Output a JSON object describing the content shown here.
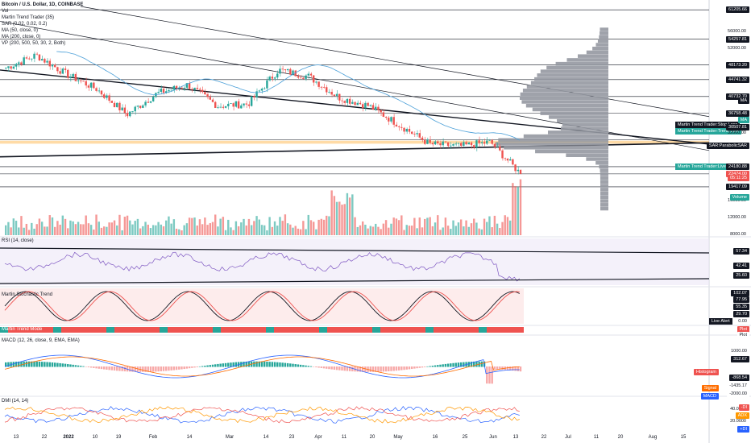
{
  "legend": {
    "title": "Bitcoin / U.S. Dollar, 1D, COINBASE",
    "lines": [
      "Vol",
      "Martin Trend Trader (35)",
      "SAR (0.02, 0.02, 0.2)",
      "MA (50, close, 0)",
      "MA (200, close, 0)",
      "VP (200, 500, 50, 30, 2, Both)"
    ]
  },
  "pane_titles": {
    "rsi": "RSI (14, close)",
    "stoch": "Martin Stochastic Trend",
    "mode": "Martin Trend Mode",
    "macd": "MACD (12, 26, close, 9, EMA, EMA)",
    "dmi": "DMI (14, 14)"
  },
  "price_badges": [
    {
      "text": "61205.66",
      "y": 61205.66,
      "bg": "#131722",
      "fg": "#ffffff"
    },
    {
      "text": "54257.81",
      "y": 54257.81,
      "bg": "#131722",
      "fg": "#ffffff"
    },
    {
      "text": "48173.20",
      "y": 48173.2,
      "bg": "#131722",
      "fg": "#ffffff"
    },
    {
      "text": "44741.32",
      "y": 44741.32,
      "bg": "#131722",
      "fg": "#ffffff"
    },
    {
      "text": "40732.70",
      "y": 40732.7,
      "bg": "#131722",
      "fg": "#ffffff"
    },
    {
      "text": "MA",
      "y": 39800,
      "bg": "#131722",
      "fg": "#ffffff"
    },
    {
      "text": "36758.48",
      "y": 36758.48,
      "bg": "#131722",
      "fg": "#ffffff"
    },
    {
      "text": "MA",
      "y": 35200,
      "bg": "#26a69a",
      "fg": "#ffffff"
    },
    {
      "text": "30507.81",
      "y": 33400,
      "bg": "#131722",
      "fg": "#ffffff"
    },
    {
      "text": "SAR:ParabolicSAR",
      "y": 29200,
      "bg": "#131722",
      "fg": "#ffffff"
    },
    {
      "text": "24180.88",
      "y": 24180.88,
      "bg": "#131722",
      "fg": "#ffffff"
    },
    {
      "text": "22474.00",
      "y": 22474.0,
      "bg": "#ef5350",
      "fg": "#ffffff"
    },
    {
      "text": "05:11:25",
      "y": 21600,
      "bg": "#ef5350",
      "fg": "#ffffff"
    },
    {
      "text": "19417.09",
      "y": 19417.09,
      "bg": "#131722",
      "fg": "#ffffff"
    },
    {
      "text": "Volume",
      "y": 16900,
      "bg": "#26a69a",
      "fg": "#ffffff"
    }
  ],
  "price_ticks": [
    "56000.00",
    "52000.00",
    "44000.00",
    "40000.00",
    "32000.00",
    "16000.00",
    "12000.00",
    "8000.00"
  ],
  "notes": {
    "stop_loss": "Martin Trend Trader:Stop Loss",
    "trend_line": "Martin Trend Trader:Trend Line",
    "live_alert_label": "Martin Trend Trader:Live Alert"
  },
  "rsi_badges": [
    "57.34",
    "42.41",
    "25.60"
  ],
  "stoch_badges": [
    "102.07",
    "77.95",
    "55.35",
    "29.70",
    "0.00"
  ],
  "stoch_live_alert": "Live Alert",
  "mode_badges": [
    "Plot",
    "Plot"
  ],
  "macd_badges": [
    "1000.00",
    "312.67",
    "-868.54",
    "-1435.17",
    "-2000.00"
  ],
  "macd_series_labels": [
    "Histogram",
    "Signal",
    "MACD"
  ],
  "dmi_ticks": [
    "40.0000",
    "20.0000"
  ],
  "dmi_badges": [
    "-DI",
    "ADX",
    "+DI"
  ],
  "x_ticks": [
    "13",
    "22",
    "2022",
    "10",
    "19",
    "Feb",
    "14",
    "Mar",
    "14",
    "23",
    "Apr",
    "11",
    "20",
    "May",
    "16",
    "25",
    "Jun",
    "13",
    "22",
    "Jul",
    "11",
    "20",
    "Aug",
    "15"
  ],
  "colors": {
    "up": "#26a69a",
    "down": "#ef5350",
    "ma50": "#4a9fd8",
    "vp": "#9598a1"
  },
  "chart_data": {
    "type": "candlestick",
    "symbol": "Bitcoin / U.S. Dollar, 1D, COINBASE",
    "ylim": [
      8000,
      62000
    ],
    "approx_close_path": [
      {
        "label": "mid Dec 2021",
        "close": 47500
      },
      {
        "label": "late Dec 2021",
        "close": 50500
      },
      {
        "label": "early Jan 2022",
        "close": 46000
      },
      {
        "label": "mid Jan 2022",
        "close": 42500
      },
      {
        "label": "late Jan 2022",
        "close": 36500
      },
      {
        "label": "early Feb 2022",
        "close": 41500
      },
      {
        "label": "mid Feb 2022",
        "close": 43500
      },
      {
        "label": "late Feb 2022",
        "close": 38500
      },
      {
        "label": "early Mar 2022",
        "close": 39000
      },
      {
        "label": "late Mar 2022",
        "close": 47000
      },
      {
        "label": "early Apr 2022",
        "close": 45500
      },
      {
        "label": "mid Apr 2022",
        "close": 40500
      },
      {
        "label": "late Apr 2022",
        "close": 38500
      },
      {
        "label": "early May 2022",
        "close": 34000
      },
      {
        "label": "mid May 2022",
        "close": 29500
      },
      {
        "label": "late May 2022",
        "close": 29000
      },
      {
        "label": "early Jun 2022",
        "close": 30000
      },
      {
        "label": "mid Jun 2022",
        "close": 22474
      }
    ],
    "horizontal_levels": [
      61205.66,
      54257.81,
      48173.2,
      44741.32,
      40732.7,
      36758.48,
      30507.81,
      24180.88,
      22474.0,
      19417.09
    ]
  }
}
